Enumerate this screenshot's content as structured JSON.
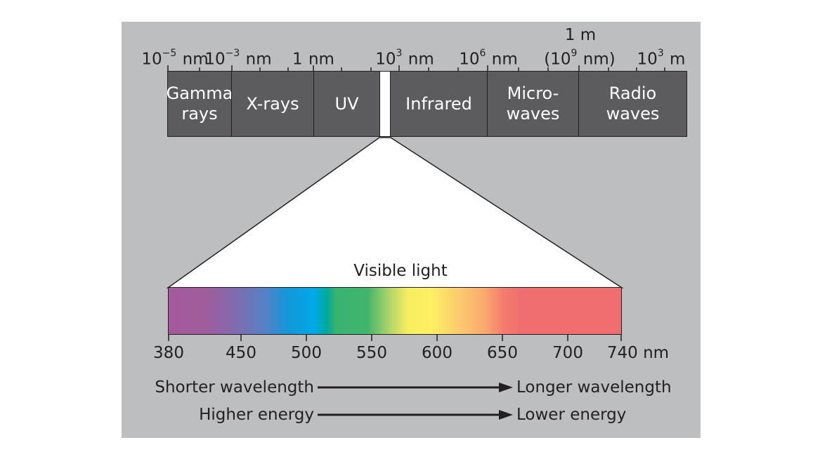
{
  "scale_labels": [
    {
      "base": "10",
      "exp": "−5",
      "unit": "nm"
    },
    {
      "base": "10",
      "exp": "−3",
      "unit": "nm"
    },
    {
      "base": "1",
      "exp": "",
      "unit": "nm"
    },
    {
      "base": "10",
      "exp": "3",
      "unit": "nm"
    },
    {
      "base": "10",
      "exp": "6",
      "unit": "nm"
    },
    {
      "base": "(10",
      "exp": "9",
      "unit": "nm)"
    },
    {
      "base": "10",
      "exp": "3",
      "unit": "m"
    }
  ],
  "one_meter_label": "1 m",
  "bands": [
    {
      "label": "Gamma\nrays"
    },
    {
      "label": "X-rays"
    },
    {
      "label": "UV"
    },
    {
      "label": ""
    },
    {
      "label": "Infrared"
    },
    {
      "label": "Micro-\nwaves"
    },
    {
      "label": "Radio\nwaves"
    }
  ],
  "visible_title": "Visible light",
  "wavelength_ticks": [
    "380",
    "450",
    "500",
    "550",
    "600",
    "650",
    "700",
    "740 nm"
  ],
  "captions": {
    "shorter": "Shorter wavelength",
    "longer": "Longer wavelength",
    "higher": "Higher energy",
    "lower": "Lower energy"
  },
  "colors": {
    "panel": "#bcbec0",
    "band": "#5c5b5e",
    "band_text": "#ffffff",
    "line": "#231f20"
  }
}
